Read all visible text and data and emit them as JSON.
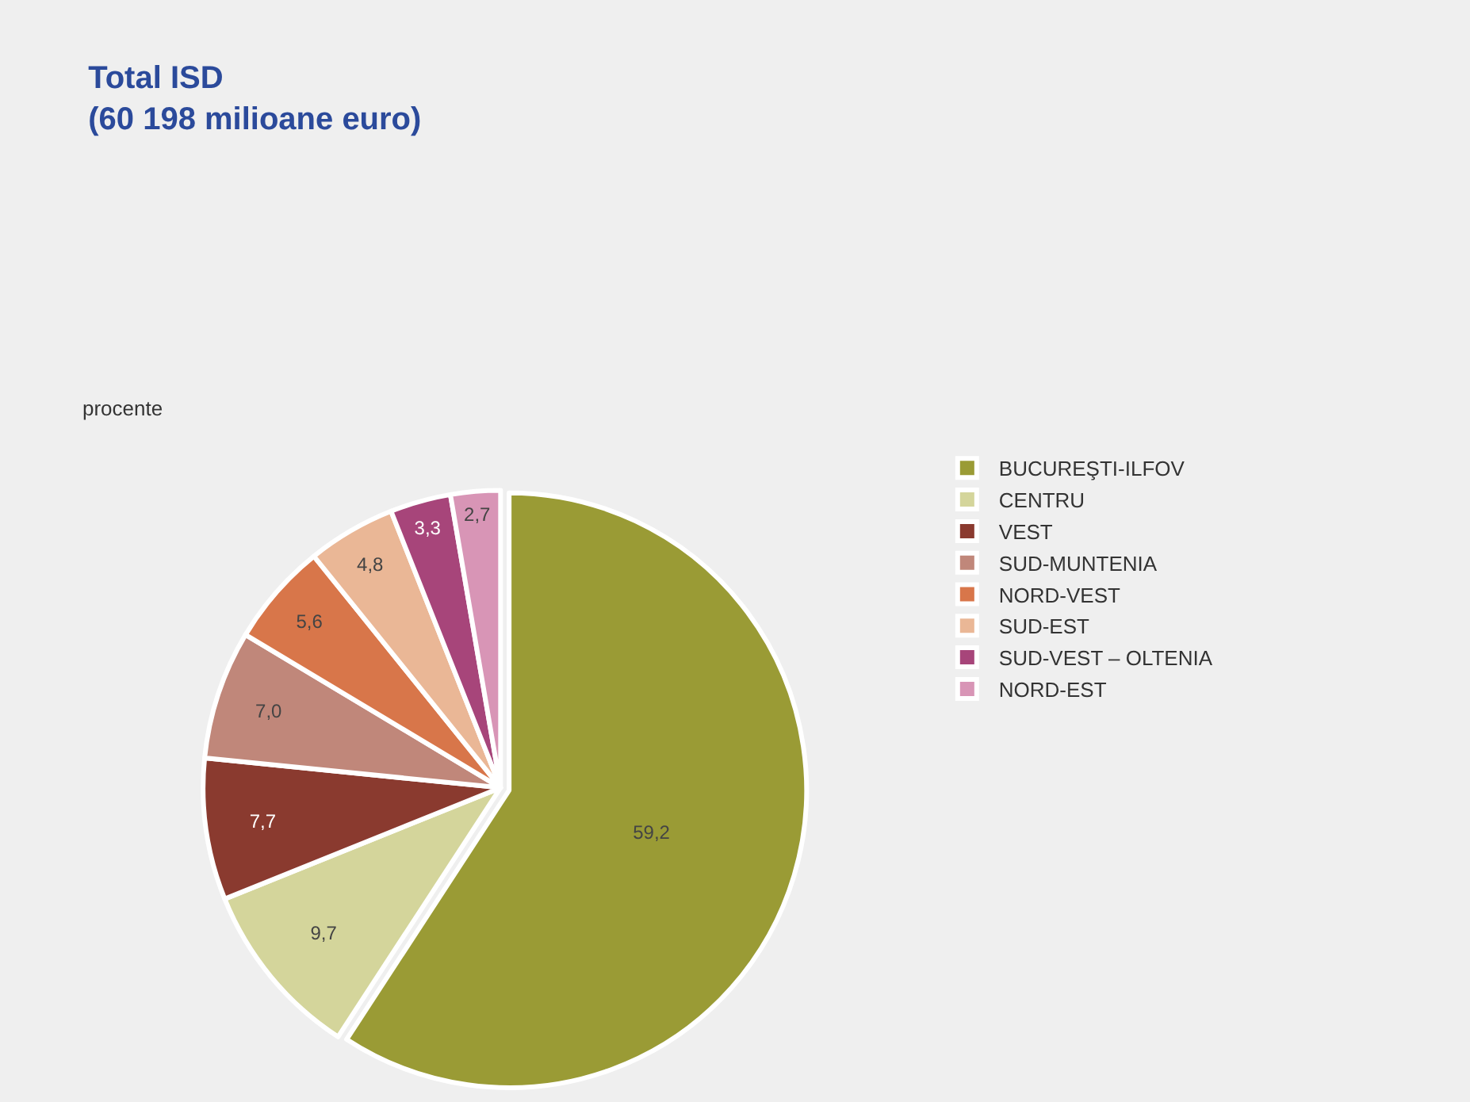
{
  "chart_data": {
    "type": "pie",
    "title": "Total ISD\n(60 198 milioane euro)",
    "subtitle": "procente",
    "categories": [
      "BUCUREŞTI-ILFOV",
      "CENTRU",
      "VEST",
      "SUD-MUNTENIA",
      "NORD-VEST",
      "SUD-EST",
      "SUD-VEST – OLTENIA",
      "NORD-EST"
    ],
    "values": [
      59.2,
      9.7,
      7.7,
      7.0,
      5.6,
      4.8,
      3.3,
      2.7
    ],
    "value_labels": [
      "59,2",
      "9,7",
      "7,7",
      "7,0",
      "5,6",
      "4,8",
      "3,3",
      "2,7"
    ],
    "colors": [
      "#9a9b35",
      "#d4d59b",
      "#8a3a2f",
      "#c0877a",
      "#d8764a",
      "#eab796",
      "#a7457a",
      "#d895b6"
    ],
    "legend": "right"
  }
}
